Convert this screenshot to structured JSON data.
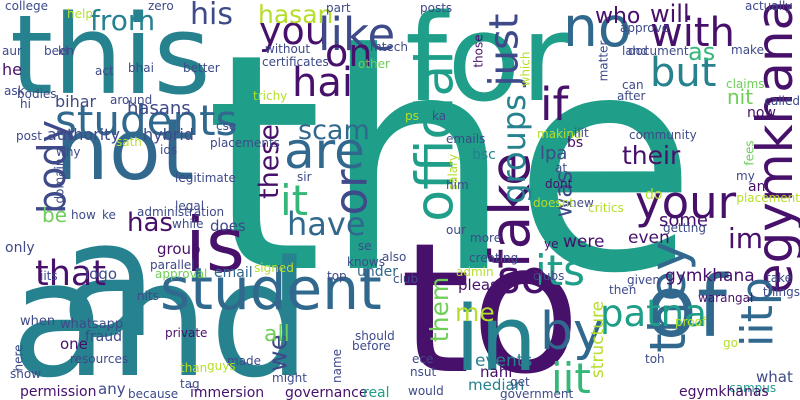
{
  "cloud": {
    "palette": {
      "purple": "#46106b",
      "indigo": "#3e4a89",
      "blue": "#31688e",
      "teal": "#26828e",
      "green": "#1f9e89",
      "mint": "#35b779",
      "lime": "#6ece58",
      "yellow": "#b5de2b"
    },
    "words": [
      {
        "text": "the",
        "color": "#1f9e89"
      },
      {
        "text": "and",
        "color": "#26828e"
      },
      {
        "text": "to",
        "color": "#46106b"
      },
      {
        "text": "this",
        "color": "#26828e"
      },
      {
        "text": "for",
        "color": "#1f9e89"
      },
      {
        "text": "not",
        "color": "#31688e"
      },
      {
        "text": "a",
        "color": "#26828e"
      },
      {
        "text": "of",
        "color": "#31688e"
      },
      {
        "text": "in",
        "color": "#26828e"
      },
      {
        "text": "is",
        "color": "#46106b"
      },
      {
        "text": "student",
        "color": "#31688e"
      },
      {
        "text": "students",
        "color": "#31688e"
      },
      {
        "text": "egymkhana",
        "color": "#46106b"
      },
      {
        "text": "you",
        "color": "#46106b"
      },
      {
        "text": "are",
        "color": "#31688e"
      },
      {
        "text": "no",
        "color": "#31688e"
      },
      {
        "text": "fake",
        "color": "#46106b"
      },
      {
        "text": "official",
        "color": "#1f9e89"
      },
      {
        "text": "by",
        "color": "#31688e"
      },
      {
        "text": "they",
        "color": "#31688e"
      },
      {
        "text": "iit",
        "color": "#35b779"
      },
      {
        "text": "iitp",
        "color": "#31688e"
      },
      {
        "text": "your",
        "color": "#46106b"
      },
      {
        "text": "its",
        "color": "#1f9e89"
      },
      {
        "text": "patna",
        "color": "#1f9e89"
      },
      {
        "text": "with",
        "color": "#46106b"
      },
      {
        "text": "but",
        "color": "#26828e"
      },
      {
        "text": "if",
        "color": "#46106b"
      },
      {
        "text": "like",
        "color": "#3e4a89"
      },
      {
        "text": "on",
        "color": "#46106b"
      },
      {
        "text": "hai",
        "color": "#46106b"
      },
      {
        "text": "just",
        "color": "#3e4a89"
      },
      {
        "text": "it",
        "color": "#35b779"
      },
      {
        "text": "or",
        "color": "#3e4a89"
      },
      {
        "text": "body",
        "color": "#3e4a89"
      },
      {
        "text": "that",
        "color": "#46106b"
      },
      {
        "text": "so",
        "color": "#46106b"
      },
      {
        "text": "have",
        "color": "#31688e"
      },
      {
        "text": "from",
        "color": "#26828e"
      },
      {
        "text": "his",
        "color": "#3e4a89"
      },
      {
        "text": "hasan",
        "color": "#b5de2b"
      },
      {
        "text": "will",
        "color": "#46106b"
      },
      {
        "text": "who",
        "color": "#46106b"
      },
      {
        "text": "as",
        "color": "#35b779"
      },
      {
        "text": "groups",
        "color": "#26828e"
      },
      {
        "text": "scam",
        "color": "#31688e"
      },
      {
        "text": "their",
        "color": "#46106b"
      },
      {
        "text": "these",
        "color": "#46106b"
      },
      {
        "text": "has",
        "color": "#46106b"
      },
      {
        "text": "be",
        "color": "#6ece58"
      },
      {
        "text": "im",
        "color": "#46106b"
      },
      {
        "text": "me",
        "color": "#b5de2b"
      },
      {
        "text": "them",
        "color": "#6ece58"
      },
      {
        "text": "nit",
        "color": "#6ece58"
      },
      {
        "text": "was",
        "color": "#3e4a89"
      },
      {
        "text": "gymkhana",
        "color": "#46106b"
      },
      {
        "text": "we",
        "color": "#3e4a89"
      },
      {
        "text": "all",
        "color": "#6ece58"
      },
      {
        "text": "hasans",
        "color": "#3e4a89"
      },
      {
        "text": "bihar",
        "color": "#3e4a89"
      },
      {
        "text": "hybrid",
        "color": "#3e4a89"
      },
      {
        "text": "authority",
        "color": "#3e4a89"
      },
      {
        "text": "lpa",
        "color": "#3e4a89"
      },
      {
        "text": "bsc",
        "color": "#26828e"
      },
      {
        "text": "some",
        "color": "#46106b"
      },
      {
        "text": "even",
        "color": "#46106b"
      },
      {
        "text": "were",
        "color": "#46106b"
      },
      {
        "text": "logo",
        "color": "#3e4a89"
      },
      {
        "text": "only",
        "color": "#3e4a89"
      },
      {
        "text": "group",
        "color": "#46106b"
      },
      {
        "text": "email",
        "color": "#31688e"
      },
      {
        "text": "does",
        "color": "#3e4a89"
      },
      {
        "text": "under",
        "color": "#31688e"
      },
      {
        "text": "please",
        "color": "#46106b"
      },
      {
        "text": "events",
        "color": "#26828e"
      },
      {
        "text": "nahi",
        "color": "#46106b"
      },
      {
        "text": "median",
        "color": "#26828e"
      },
      {
        "text": "structure",
        "color": "#b5de2b"
      },
      {
        "text": "any",
        "color": "#3e4a89"
      },
      {
        "text": "permission",
        "color": "#46106b"
      },
      {
        "text": "governance",
        "color": "#46106b"
      },
      {
        "text": "real",
        "color": "#1f9e89"
      },
      {
        "text": "immersion",
        "color": "#46106b"
      },
      {
        "text": "whatsapp",
        "color": "#3e4a89"
      },
      {
        "text": "fraud",
        "color": "#3e4a89"
      },
      {
        "text": "one",
        "color": "#46106b"
      },
      {
        "text": "when",
        "color": "#3e4a89"
      },
      {
        "text": "private",
        "color": "#46106b"
      },
      {
        "text": "administration",
        "color": "#3e4a89"
      },
      {
        "text": "how",
        "color": "#3e4a89"
      },
      {
        "text": "ke",
        "color": "#3e4a89"
      },
      {
        "text": "iits",
        "color": "#3e4a89"
      },
      {
        "text": "nits",
        "color": "#3e4a89"
      },
      {
        "text": "ids",
        "color": "#3e4a89"
      },
      {
        "text": "why",
        "color": "#3e4a89"
      },
      {
        "text": "post",
        "color": "#3e4a89"
      },
      {
        "text": "around",
        "color": "#3e4a89"
      },
      {
        "text": "cse",
        "color": "#3e4a89"
      },
      {
        "text": "placements",
        "color": "#3e4a89"
      },
      {
        "text": "better",
        "color": "#3e4a89"
      },
      {
        "text": "bhai",
        "color": "#3e4a89"
      },
      {
        "text": "act",
        "color": "#3e4a89"
      },
      {
        "text": "aur",
        "color": "#3e4a89"
      },
      {
        "text": "he",
        "color": "#46106b"
      },
      {
        "text": "ask",
        "color": "#3e4a89"
      },
      {
        "text": "college",
        "color": "#3e4a89"
      },
      {
        "text": "zero",
        "color": "#3e4a89"
      },
      {
        "text": "without",
        "color": "#3e4a89"
      },
      {
        "text": "certificates",
        "color": "#3e4a89"
      },
      {
        "text": "part",
        "color": "#3e4a89"
      },
      {
        "text": "mtech",
        "color": "#3e4a89"
      },
      {
        "text": "other",
        "color": "#6ece58"
      },
      {
        "text": "posts",
        "color": "#3e4a89"
      },
      {
        "text": "those",
        "color": "#46106b"
      },
      {
        "text": "which",
        "color": "#b5de2b"
      },
      {
        "text": "matter",
        "color": "#3e4a89"
      },
      {
        "text": "approve",
        "color": "#3e4a89"
      },
      {
        "text": "document",
        "color": "#3e4a89"
      },
      {
        "text": "land",
        "color": "#3e4a89"
      },
      {
        "text": "can",
        "color": "#3e4a89"
      },
      {
        "text": "after",
        "color": "#3e4a89"
      },
      {
        "text": "actually",
        "color": "#3e4a89"
      },
      {
        "text": "make",
        "color": "#3e4a89"
      },
      {
        "text": "claims",
        "color": "#6ece58"
      },
      {
        "text": "called",
        "color": "#3e4a89"
      },
      {
        "text": "now",
        "color": "#46106b"
      },
      {
        "text": "community",
        "color": "#3e4a89"
      },
      {
        "text": "emails",
        "color": "#3e4a89"
      },
      {
        "text": "making",
        "color": "#b5de2b"
      },
      {
        "text": "bs",
        "color": "#46106b"
      },
      {
        "text": "at",
        "color": "#3e4a89"
      },
      {
        "text": "dont",
        "color": "#46106b"
      },
      {
        "text": "do",
        "color": "#b5de2b"
      },
      {
        "text": "my",
        "color": "#3e4a89"
      },
      {
        "text": "an",
        "color": "#46106b"
      },
      {
        "text": "fees",
        "color": "#6ece58"
      },
      {
        "text": "salary",
        "color": "#b5de2b"
      },
      {
        "text": "him",
        "color": "#3e4a89"
      },
      {
        "text": "new",
        "color": "#3e4a89"
      },
      {
        "text": "critics",
        "color": "#b5de2b"
      },
      {
        "text": "getting",
        "color": "#3e4a89"
      },
      {
        "text": "our",
        "color": "#3e4a89"
      },
      {
        "text": "more",
        "color": "#3e4a89"
      },
      {
        "text": "ye",
        "color": "#46106b"
      },
      {
        "text": "creating",
        "color": "#3e4a89"
      },
      {
        "text": "also",
        "color": "#3e4a89"
      },
      {
        "text": "knows",
        "color": "#3e4a89"
      },
      {
        "text": "top",
        "color": "#3e4a89"
      },
      {
        "text": "club",
        "color": "#3e4a89"
      },
      {
        "text": "admin",
        "color": "#b5de2b"
      },
      {
        "text": "clubs",
        "color": "#3e4a89"
      },
      {
        "text": "then",
        "color": "#3e4a89"
      },
      {
        "text": "given",
        "color": "#3e4a89"
      },
      {
        "text": "warangal",
        "color": "#46106b"
      },
      {
        "text": "take",
        "color": "#3e4a89"
      },
      {
        "text": "things",
        "color": "#3e4a89"
      },
      {
        "text": "proof",
        "color": "#b5de2b"
      },
      {
        "text": "go",
        "color": "#b5de2b"
      },
      {
        "text": "what",
        "color": "#3e4a89"
      },
      {
        "text": "toh",
        "color": "#3e4a89"
      },
      {
        "text": "campus",
        "color": "#1f9e89"
      },
      {
        "text": "egymkhanas",
        "color": "#46106b"
      },
      {
        "text": "government",
        "color": "#3e4a89"
      },
      {
        "text": "get",
        "color": "#3e4a89"
      },
      {
        "text": "would",
        "color": "#3e4a89"
      },
      {
        "text": "nsut",
        "color": "#3e4a89"
      },
      {
        "text": "ece",
        "color": "#3e4a89"
      },
      {
        "text": "should",
        "color": "#3e4a89"
      },
      {
        "text": "before",
        "color": "#3e4a89"
      },
      {
        "text": "name",
        "color": "#3e4a89"
      },
      {
        "text": "might",
        "color": "#3e4a89"
      },
      {
        "text": "made",
        "color": "#3e4a89"
      },
      {
        "text": "tag",
        "color": "#3e4a89"
      },
      {
        "text": "because",
        "color": "#3e4a89"
      },
      {
        "text": "than",
        "color": "#b5de2b"
      },
      {
        "text": "guys",
        "color": "#b5de2b"
      },
      {
        "text": "approval",
        "color": "#6ece58"
      },
      {
        "text": "parallel",
        "color": "#3e4a89"
      },
      {
        "text": "signed",
        "color": "#b5de2b"
      },
      {
        "text": "se",
        "color": "#3e4a89"
      },
      {
        "text": "sir",
        "color": "#3e4a89"
      },
      {
        "text": "while",
        "color": "#3e4a89"
      },
      {
        "text": "legal",
        "color": "#3e4a89"
      },
      {
        "text": "legitimate",
        "color": "#3e4a89"
      },
      {
        "text": "sath",
        "color": "#b5de2b"
      },
      {
        "text": "domain",
        "color": "#3e4a89"
      },
      {
        "text": "resources",
        "color": "#3e4a89"
      },
      {
        "text": "show",
        "color": "#3e4a89"
      },
      {
        "text": "here",
        "color": "#3e4a89"
      },
      {
        "text": "bodies",
        "color": "#3e4a89"
      },
      {
        "text": "hi",
        "color": "#3e4a89"
      },
      {
        "text": "been",
        "color": "#3e4a89"
      },
      {
        "text": "kl",
        "color": "#3e4a89"
      },
      {
        "text": "help",
        "color": "#b5de2b"
      },
      {
        "text": "trichy",
        "color": "#b5de2b"
      },
      {
        "text": "placement",
        "color": "#b5de2b"
      },
      {
        "text": "iiit",
        "color": "#3e4a89"
      },
      {
        "text": "ka",
        "color": "#3e4a89"
      },
      {
        "text": "ps",
        "color": "#b5de2b"
      },
      {
        "text": "doesnt",
        "color": "#b5de2b"
      }
    ]
  }
}
